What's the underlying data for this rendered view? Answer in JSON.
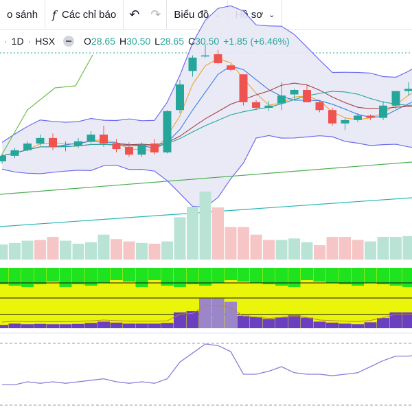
{
  "toolbar": {
    "compare_label": "o sánh",
    "indicators_label": "Các chỉ báo",
    "fx_glyph": "f",
    "undo_glyph": "↶",
    "redo_glyph": "↷",
    "chart_label": "Biểu đồ",
    "profile_label": "Hồ sơ"
  },
  "legend": {
    "interval": "1D",
    "exchange": "HSX",
    "separator": "·",
    "o_label": "O",
    "o_value": "28.65",
    "h_label": "H",
    "h_value": "30.50",
    "l_label": "L",
    "l_value": "28.65",
    "c_label": "C",
    "c_value": "30.50",
    "change": "+1.85 (+6.46%)"
  },
  "colors": {
    "up": "#26a69a",
    "down": "#ef5350",
    "band_fill": "#e8e8f6",
    "band_line": "#6b6bf0",
    "volume_up": "#b9e4d5",
    "volume_down": "#f6c5c5",
    "rsi_line": "#8c7ad6",
    "green_zone": "#1ee31e",
    "yellow_zone": "#eaf50a",
    "purple_bar": "#6a3fc0"
  },
  "chart_data": {
    "type": "candlestick",
    "candles": [
      {
        "o": 14.0,
        "h": 14.6,
        "l": 13.8,
        "c": 14.5
      },
      {
        "o": 14.5,
        "h": 15.2,
        "l": 14.3,
        "c": 15.0
      },
      {
        "o": 15.0,
        "h": 15.8,
        "l": 14.9,
        "c": 15.6
      },
      {
        "o": 15.6,
        "h": 16.4,
        "l": 15.4,
        "c": 16.1
      },
      {
        "o": 16.1,
        "h": 16.5,
        "l": 15.0,
        "c": 15.3
      },
      {
        "o": 15.3,
        "h": 15.8,
        "l": 14.9,
        "c": 15.4
      },
      {
        "o": 15.4,
        "h": 16.1,
        "l": 15.2,
        "c": 15.8
      },
      {
        "o": 15.8,
        "h": 16.7,
        "l": 15.6,
        "c": 16.4
      },
      {
        "o": 16.4,
        "h": 17.2,
        "l": 15.3,
        "c": 15.6
      },
      {
        "o": 15.6,
        "h": 16.0,
        "l": 14.8,
        "c": 15.1
      },
      {
        "o": 15.3,
        "h": 15.7,
        "l": 14.4,
        "c": 14.6
      },
      {
        "o": 14.6,
        "h": 15.7,
        "l": 14.4,
        "c": 15.5
      },
      {
        "o": 15.6,
        "h": 16.0,
        "l": 14.6,
        "c": 14.8
      },
      {
        "o": 14.8,
        "h": 18.6,
        "l": 14.7,
        "c": 18.5
      },
      {
        "o": 18.6,
        "h": 21.3,
        "l": 18.3,
        "c": 20.9
      },
      {
        "o": 22.1,
        "h": 23.5,
        "l": 21.6,
        "c": 23.3
      },
      {
        "o": 23.4,
        "h": 24.5,
        "l": 23.3,
        "c": 23.5
      },
      {
        "o": 23.6,
        "h": 24.0,
        "l": 22.7,
        "c": 22.8
      },
      {
        "o": 22.6,
        "h": 22.7,
        "l": 22.1,
        "c": 22.2
      },
      {
        "o": 21.8,
        "h": 21.8,
        "l": 19.0,
        "c": 19.3
      },
      {
        "o": 19.3,
        "h": 19.5,
        "l": 18.6,
        "c": 18.8
      },
      {
        "o": 18.8,
        "h": 19.4,
        "l": 18.5,
        "c": 19.0
      },
      {
        "o": 19.2,
        "h": 21.1,
        "l": 18.6,
        "c": 19.9
      },
      {
        "o": 20.0,
        "h": 20.5,
        "l": 19.5,
        "c": 20.4
      },
      {
        "o": 20.4,
        "h": 20.8,
        "l": 19.3,
        "c": 19.3
      },
      {
        "o": 19.3,
        "h": 19.5,
        "l": 18.4,
        "c": 18.6
      },
      {
        "o": 18.6,
        "h": 18.8,
        "l": 17.2,
        "c": 17.4
      },
      {
        "o": 17.4,
        "h": 17.9,
        "l": 16.8,
        "c": 17.7
      },
      {
        "o": 17.7,
        "h": 18.3,
        "l": 17.5,
        "c": 18.1
      },
      {
        "o": 18.1,
        "h": 18.2,
        "l": 17.7,
        "c": 17.9
      },
      {
        "o": 17.9,
        "h": 19.4,
        "l": 17.7,
        "c": 19.0
      },
      {
        "o": 19.0,
        "h": 20.3,
        "l": 18.7,
        "c": 20.3
      },
      {
        "o": 20.3,
        "h": 21.1,
        "l": 19.9,
        "c": 20.5
      },
      {
        "o": 20.6,
        "h": 21.3,
        "l": 20.3,
        "c": 20.9
      }
    ],
    "volume": [
      0.2,
      0.22,
      0.25,
      0.26,
      0.3,
      0.25,
      0.21,
      0.23,
      0.33,
      0.27,
      0.24,
      0.22,
      0.21,
      0.24,
      0.56,
      0.7,
      0.9,
      0.69,
      0.43,
      0.43,
      0.33,
      0.26,
      0.26,
      0.28,
      0.23,
      0.19,
      0.3,
      0.3,
      0.26,
      0.24,
      0.3,
      0.3,
      0.31,
      0.33
    ],
    "volume_up": [
      true,
      true,
      true,
      false,
      false,
      true,
      true,
      true,
      true,
      false,
      false,
      true,
      false,
      true,
      true,
      true,
      true,
      false,
      false,
      false,
      false,
      false,
      true,
      true,
      true,
      false,
      false,
      false,
      false,
      true,
      true,
      true,
      true,
      false
    ],
    "histogram": [
      0.1,
      0.14,
      0.12,
      0.13,
      0.12,
      0.12,
      0.13,
      0.16,
      0.2,
      0.17,
      0.14,
      0.14,
      0.14,
      0.16,
      0.48,
      0.52,
      0.9,
      0.9,
      0.8,
      0.38,
      0.34,
      0.28,
      0.33,
      0.39,
      0.32,
      0.2,
      0.17,
      0.14,
      0.12,
      0.18,
      0.31,
      0.48,
      0.48,
      0.48
    ],
    "rsi": [
      48,
      48,
      50,
      49,
      50,
      49,
      50,
      51,
      52,
      50,
      49,
      50,
      49,
      52,
      63,
      69,
      75,
      74,
      70,
      55,
      55,
      57,
      60,
      56,
      55,
      55,
      54,
      55,
      56,
      60,
      64,
      67,
      67,
      68
    ]
  }
}
